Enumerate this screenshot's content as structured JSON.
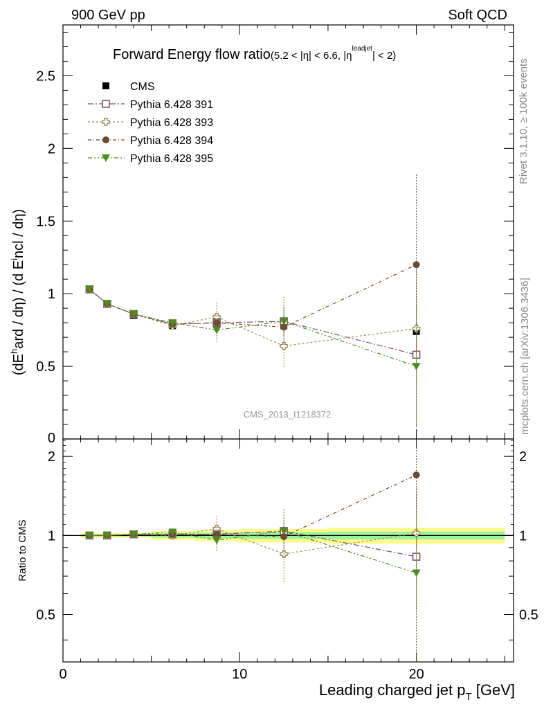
{
  "header": {
    "left": "900 GeV pp",
    "right": "Soft QCD"
  },
  "side_labels": {
    "top": "Rivet 3.1.10, ≥ 100k events",
    "bottom": "mcplots.cern.ch [arXiv:1306.3436]"
  },
  "chart_data": [
    {
      "type": "scatter",
      "title": "Forward Energy flow ratio",
      "title_cut": "(5.2 < |η| < 6.6, |η",
      "title_cut_sup": "leadjet",
      "title_cut_end": "| < 2)",
      "ylabel": "(dE^hard / dη) / (d E^incl / dη)",
      "watermark": "CMS_2013_I1218372",
      "xlim": [
        0,
        25.5
      ],
      "ylim": [
        0,
        2.85
      ],
      "y_ticks": [
        0.5,
        1,
        1.5,
        2,
        2.5
      ],
      "y_tick_labels": [
        "0.5",
        "1",
        "1.5",
        "2",
        "2.5"
      ],
      "y_zero_label": "0",
      "legend_position": "top-left",
      "series": [
        {
          "name": "CMS",
          "marker": "filled-square",
          "color": "#000000",
          "x": [
            1.5,
            2.5,
            4.0,
            6.2,
            8.7,
            12.5,
            20.0
          ],
          "y": [
            1.03,
            0.93,
            0.85,
            0.78,
            0.79,
            0.78,
            0.74
          ],
          "yerr": [
            0.01,
            0.01,
            0.01,
            0.02,
            0.03,
            0.04,
            0.05
          ]
        },
        {
          "name": "Pythia 6.428 391",
          "marker": "open-square",
          "color": "#7b4a64",
          "x": [
            1.5,
            2.5,
            4.0,
            6.2,
            8.7,
            12.5,
            20.0
          ],
          "y": [
            1.03,
            0.93,
            0.86,
            0.79,
            0.8,
            0.81,
            0.58
          ],
          "yerr": [
            0.01,
            0.01,
            0.01,
            0.02,
            0.07,
            0.1,
            0.5
          ]
        },
        {
          "name": "Pythia 6.428 393",
          "marker": "open-cross",
          "color": "#9a8a5c",
          "x": [
            1.5,
            2.5,
            4.0,
            6.2,
            8.7,
            12.5,
            20.0
          ],
          "y": [
            1.03,
            0.93,
            0.86,
            0.78,
            0.84,
            0.64,
            0.76
          ],
          "yerr": [
            0.01,
            0.01,
            0.01,
            0.02,
            0.1,
            0.15,
            0.4
          ]
        },
        {
          "name": "Pythia 6.428 394",
          "marker": "filled-circle",
          "color": "#6b4a32",
          "x": [
            1.5,
            2.5,
            4.0,
            6.2,
            8.7,
            12.5,
            20.0
          ],
          "y": [
            1.03,
            0.93,
            0.86,
            0.79,
            0.8,
            0.77,
            1.2
          ],
          "yerr": [
            0.01,
            0.01,
            0.01,
            0.02,
            0.05,
            0.1,
            0.62
          ]
        },
        {
          "name": "Pythia 6.428 395",
          "marker": "filled-triangle-down",
          "color": "#4f8a1e",
          "x": [
            1.5,
            2.5,
            4.0,
            6.2,
            8.7,
            12.5,
            20.0
          ],
          "y": [
            1.03,
            0.93,
            0.86,
            0.8,
            0.75,
            0.81,
            0.5
          ],
          "yerr": [
            0.01,
            0.01,
            0.01,
            0.02,
            0.08,
            0.17,
            0.42
          ]
        }
      ]
    },
    {
      "type": "scatter",
      "ylabel": "Ratio to CMS",
      "xlabel": "Leading charged jet p",
      "xlabel_sub": "T",
      "xlabel_unit": " [GeV]",
      "xlim": [
        0,
        25.5
      ],
      "ylim": [
        0.33,
        2.33
      ],
      "y_ticks": [
        0.5,
        1,
        2
      ],
      "y_tick_labels": [
        "0.5",
        "1",
        "2"
      ],
      "x_ticks": [
        0,
        10,
        20
      ],
      "x_tick_labels": [
        "0",
        "10",
        "20"
      ],
      "bands": [
        {
          "x": [
            1.0,
            2.0,
            3.0,
            5.0,
            7.5,
            10.0,
            15.0,
            25.0
          ],
          "stat_err": [
            0.01,
            0.01,
            0.01,
            0.02,
            0.025,
            0.03,
            0.035,
            0.04
          ],
          "total_err": [
            0.02,
            0.02,
            0.02,
            0.04,
            0.05,
            0.06,
            0.07,
            0.08
          ]
        }
      ],
      "series": [
        {
          "name": "Pythia 6.428 391",
          "x": [
            1.5,
            2.5,
            4.0,
            6.2,
            8.7,
            12.5,
            20.0
          ],
          "y": [
            1.0,
            1.0,
            1.01,
            1.01,
            1.01,
            1.04,
            0.83
          ],
          "yerr": [
            0.01,
            0.01,
            0.01,
            0.03,
            0.09,
            0.13,
            0.6
          ]
        },
        {
          "name": "Pythia 6.428 393",
          "x": [
            1.5,
            2.5,
            4.0,
            6.2,
            8.7,
            12.5,
            20.0
          ],
          "y": [
            1.0,
            1.0,
            1.01,
            1.0,
            1.06,
            0.85,
            1.02
          ],
          "yerr": [
            0.01,
            0.01,
            0.01,
            0.03,
            0.13,
            0.19,
            0.5
          ]
        },
        {
          "name": "Pythia 6.428 394",
          "x": [
            1.5,
            2.5,
            4.0,
            6.2,
            8.7,
            12.5,
            20.0
          ],
          "y": [
            1.0,
            1.0,
            1.01,
            1.01,
            1.01,
            0.99,
            1.7
          ],
          "yerr": [
            0.01,
            0.01,
            0.01,
            0.03,
            0.07,
            0.13,
            0.8
          ]
        },
        {
          "name": "Pythia 6.428 395",
          "x": [
            1.5,
            2.5,
            4.0,
            6.2,
            8.7,
            12.5,
            20.0
          ],
          "y": [
            1.0,
            1.0,
            1.01,
            1.03,
            0.96,
            1.04,
            0.72
          ],
          "yerr": [
            0.01,
            0.01,
            0.01,
            0.03,
            0.09,
            0.22,
            0.55
          ]
        }
      ]
    }
  ]
}
